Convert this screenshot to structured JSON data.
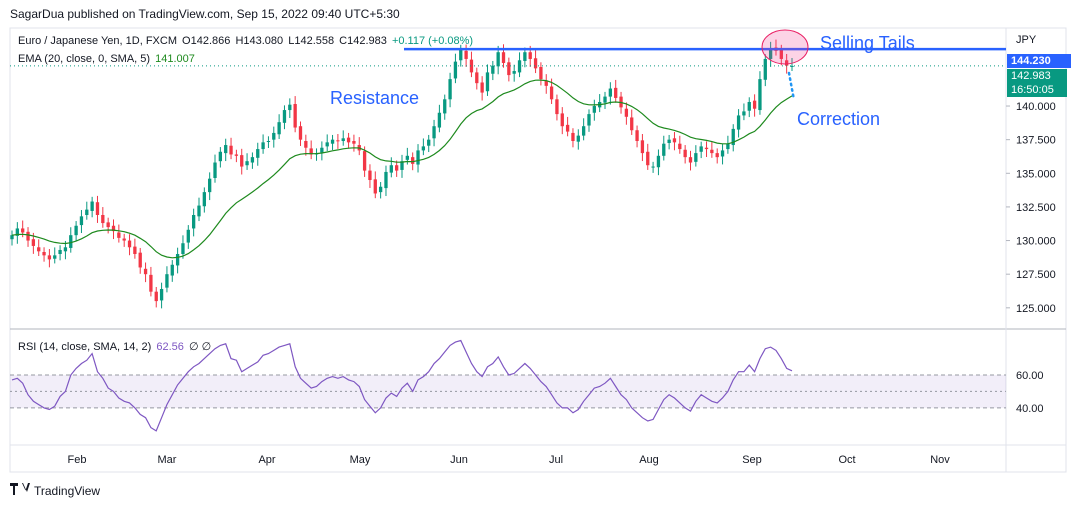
{
  "header": {
    "publisher_line": "SagarDua published on TradingView.com, Sep 15, 2022 09:40 UTC+5:30"
  },
  "legend": {
    "symbol": "Euro / Japanese Yen, 1D, FXCM",
    "o": "O142.866",
    "h": "H143.080",
    "l": "L142.558",
    "c": "C142.983",
    "change": "+0.117 (+0.08%)",
    "ema_label": "EMA (20, close, 0, SMA, 5)",
    "ema_value": "141.007",
    "rsi_label": "RSI (14, close, SMA, 14, 2)",
    "rsi_value": "62.56",
    "rsi_extra": "∅ ∅"
  },
  "annotations": {
    "resistance": "Resistance",
    "selling_tails": "Selling Tails",
    "correction": "Correction"
  },
  "price_tags": {
    "currency": "JPY",
    "resistance_level": "144.230",
    "last_price": "142.983",
    "countdown": "16:50:05"
  },
  "footer": {
    "brand": "TradingView",
    "logo_icon": "tradingview-logo-icon"
  },
  "colors": {
    "up": "#089981",
    "down": "#f23645",
    "ema": "#1e8a1e",
    "rsi": "#7e57c2",
    "annotation": "#2962ff",
    "price_tag": "#089981"
  },
  "chart_data": [
    {
      "type": "candlestick",
      "x_tick_labels": [
        "Feb",
        "Mar",
        "Apr",
        "May",
        "Jun",
        "Jul",
        "Aug",
        "Sep",
        "Oct",
        "Nov"
      ],
      "y_tick_labels": [
        "125.000",
        "127.500",
        "130.000",
        "132.500",
        "135.000",
        "137.500",
        "140.000"
      ],
      "ylim": [
        123.5,
        145.8
      ],
      "resistance_level": 144.23,
      "last_close": 142.983,
      "series": [
        {
          "name": "close",
          "values": [
            130.4,
            130.9,
            130.6,
            130.0,
            129.6,
            129.2,
            128.9,
            128.6,
            128.9,
            129.3,
            129.5,
            130.4,
            131.1,
            131.8,
            132.3,
            132.9,
            131.9,
            131.3,
            131.0,
            130.7,
            130.2,
            130.0,
            129.5,
            129.0,
            128.0,
            127.5,
            126.2,
            125.5,
            126.4,
            127.5,
            128.2,
            129.0,
            129.8,
            130.8,
            131.9,
            132.6,
            133.6,
            134.6,
            135.8,
            136.6,
            137.1,
            136.4,
            136.3,
            135.5,
            135.9,
            136.2,
            136.8,
            137.3,
            137.4,
            138.0,
            138.8,
            139.7,
            140.1,
            138.4,
            137.5,
            136.9,
            136.4,
            136.5,
            136.9,
            137.3,
            137.5,
            137.4,
            137.6,
            137.3,
            137.2,
            136.7,
            135.2,
            134.5,
            133.5,
            134.0,
            135.1,
            135.6,
            135.2,
            135.9,
            136.3,
            135.7,
            136.7,
            137.0,
            137.5,
            138.5,
            139.5,
            140.5,
            142.0,
            143.3,
            144.2,
            143.5,
            142.5,
            141.7,
            141.0,
            142.5,
            143.0,
            144.0,
            143.2,
            142.3,
            142.6,
            143.4,
            144.0,
            143.5,
            142.8,
            142.0,
            141.5,
            140.5,
            139.4,
            138.5,
            138.1,
            137.4,
            137.8,
            138.5,
            139.4,
            140.0,
            140.3,
            140.7,
            141.3,
            140.6,
            139.9,
            139.2,
            138.2,
            137.4,
            136.5,
            135.6,
            135.5,
            136.3,
            137.2,
            137.5,
            137.3,
            136.8,
            136.2,
            135.8,
            136.5,
            137.0,
            136.8,
            136.5,
            136.2,
            136.7,
            137.2,
            138.3,
            139.3,
            139.6,
            140.3,
            139.8,
            142.0,
            143.5,
            144.3,
            144.1,
            143.5,
            143.0,
            142.98
          ]
        }
      ]
    },
    {
      "type": "line",
      "name": "RSI",
      "y_tick_labels": [
        "40.00",
        "60.00"
      ],
      "ylim": [
        18,
        88
      ],
      "band": [
        40,
        60
      ],
      "series": [
        {
          "name": "RSI",
          "values": [
            57,
            58,
            55,
            48,
            44,
            42,
            40,
            39,
            41,
            47,
            50,
            60,
            64,
            67,
            69,
            73,
            62,
            58,
            52,
            50,
            46,
            44,
            43,
            40,
            36,
            34,
            28,
            26,
            34,
            42,
            48,
            54,
            58,
            62,
            65,
            67,
            70,
            73,
            76,
            78,
            79,
            70,
            69,
            62,
            64,
            66,
            68,
            72,
            73,
            75,
            77,
            78,
            79,
            65,
            58,
            55,
            52,
            53,
            56,
            58,
            59,
            58,
            59,
            57,
            56,
            53,
            45,
            41,
            37,
            40,
            46,
            49,
            47,
            52,
            55,
            50,
            57,
            59,
            62,
            67,
            70,
            74,
            78,
            80,
            81,
            74,
            67,
            62,
            59,
            65,
            67,
            71,
            65,
            60,
            61,
            64,
            67,
            64,
            60,
            56,
            53,
            48,
            43,
            40,
            40,
            37,
            39,
            44,
            48,
            52,
            53,
            55,
            58,
            53,
            48,
            45,
            40,
            37,
            34,
            32,
            33,
            39,
            45,
            48,
            46,
            43,
            40,
            38,
            44,
            48,
            46,
            44,
            43,
            46,
            50,
            57,
            62,
            62,
            66,
            62,
            70,
            76,
            77,
            75,
            70,
            64,
            62.56
          ]
        }
      ]
    }
  ]
}
